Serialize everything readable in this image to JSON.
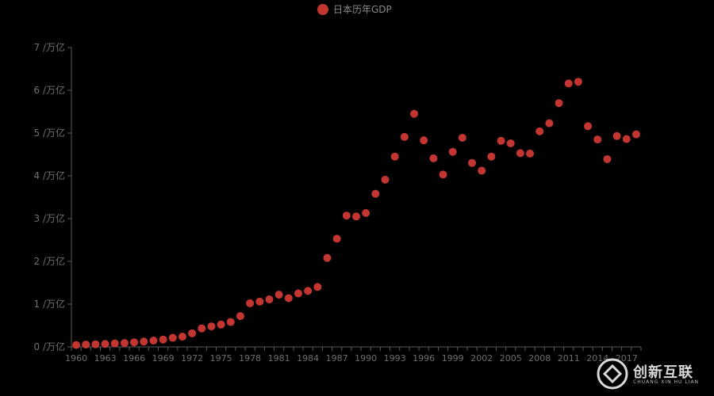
{
  "chart_data": {
    "type": "scatter",
    "legend": {
      "label": "日本历年GDP",
      "position": "top-center"
    },
    "series": [
      {
        "name": "日本历年GDP",
        "color": "#c23531",
        "x": [
          1960,
          1961,
          1962,
          1963,
          1964,
          1965,
          1966,
          1967,
          1968,
          1969,
          1970,
          1971,
          1972,
          1973,
          1974,
          1975,
          1976,
          1977,
          1978,
          1979,
          1980,
          1981,
          1982,
          1983,
          1984,
          1985,
          1986,
          1987,
          1988,
          1989,
          1990,
          1991,
          1992,
          1993,
          1994,
          1995,
          1996,
          1997,
          1998,
          1999,
          2000,
          2001,
          2002,
          2003,
          2004,
          2005,
          2006,
          2007,
          2008,
          2009,
          2010,
          2011,
          2012,
          2013,
          2014,
          2015,
          2016,
          2017,
          2018
        ],
        "y": [
          0.044,
          0.054,
          0.061,
          0.069,
          0.082,
          0.091,
          0.106,
          0.124,
          0.147,
          0.172,
          0.212,
          0.24,
          0.318,
          0.432,
          0.48,
          0.522,
          0.582,
          0.721,
          1.02,
          1.06,
          1.11,
          1.22,
          1.14,
          1.25,
          1.31,
          1.4,
          2.08,
          2.53,
          3.07,
          3.05,
          3.13,
          3.58,
          3.91,
          4.45,
          4.91,
          5.45,
          4.83,
          4.41,
          4.03,
          4.56,
          4.89,
          4.3,
          4.12,
          4.45,
          4.82,
          4.76,
          4.53,
          4.52,
          5.04,
          5.23,
          5.7,
          6.16,
          6.2,
          5.16,
          4.85,
          4.39,
          4.93,
          4.86,
          4.97
        ]
      }
    ],
    "x_ticks": [
      "1960",
      "1963",
      "1966",
      "1969",
      "1972",
      "1975",
      "1978",
      "1981",
      "1984",
      "1987",
      "1990",
      "1993",
      "1996",
      "1999",
      "2002",
      "2005",
      "2008",
      "2011",
      "2014",
      "2017"
    ],
    "y_ticks": [
      "0 /万亿",
      "1 /万亿",
      "2 /万亿",
      "3 /万亿",
      "4 /万亿",
      "5 /万亿",
      "6 /万亿",
      "7 /万亿"
    ],
    "ylim": [
      0,
      7
    ],
    "xlim": [
      1960,
      2018
    ],
    "grid": false
  },
  "watermark": {
    "title": "创新互联",
    "subtitle": "CHUANG XIN HU LIAN"
  }
}
